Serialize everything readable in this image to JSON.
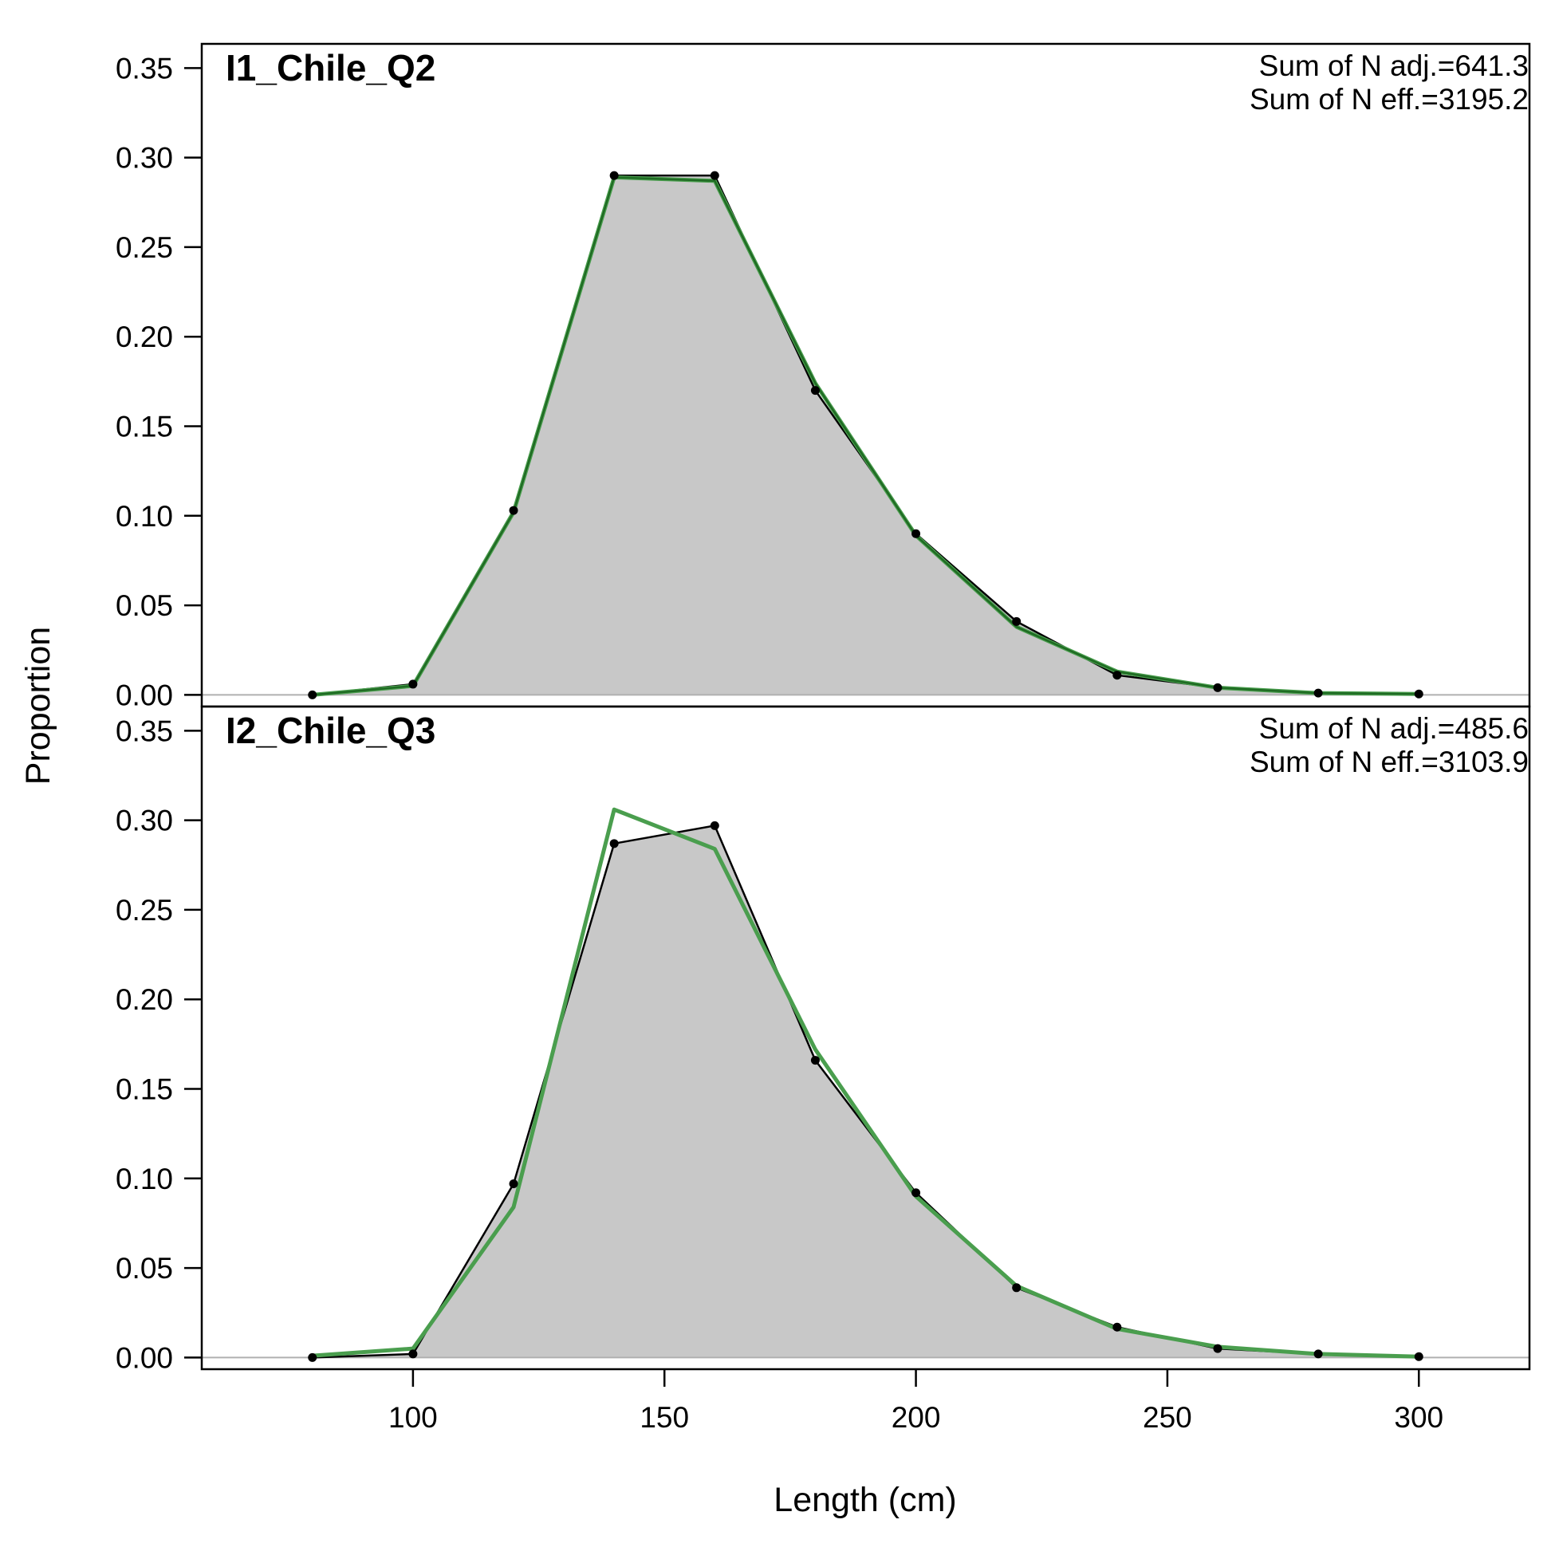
{
  "chart_data": {
    "type": "area",
    "xlabel": "Length (cm)",
    "ylabel": "Proportion",
    "xlim": [
      58,
      322
    ],
    "ylim": [
      -0.0065,
      0.3635
    ],
    "xticks": [
      100,
      150,
      200,
      250,
      300
    ],
    "yticks": [
      0.0,
      0.05,
      0.1,
      0.15,
      0.2,
      0.25,
      0.3,
      0.35
    ],
    "ytick_labels": [
      "0.00",
      "0.05",
      "0.10",
      "0.15",
      "0.20",
      "0.25",
      "0.30",
      "0.35"
    ],
    "colors": {
      "observed_fill": "#c8c8c8",
      "observed_line": "#000000",
      "expected_line": "#4a9e4e",
      "expected_line_dark": "#1f6b23",
      "zero_line": "#b0b0b0"
    },
    "x": [
      80,
      100,
      120,
      140,
      160,
      180,
      200,
      220,
      240,
      260,
      280,
      300
    ],
    "panels": [
      {
        "title": "I1_Chile_Q2",
        "annotations": [
          "Sum of N adj.=641.3",
          "Sum of N eff.=3195.2"
        ],
        "series": [
          {
            "role": "observed",
            "values": [
              0.0,
              0.006,
              0.103,
              0.29,
              0.29,
              0.17,
              0.09,
              0.041,
              0.011,
              0.004,
              0.001,
              0.0005
            ]
          },
          {
            "role": "expected",
            "values": [
              0.0,
              0.005,
              0.102,
              0.289,
              0.287,
              0.174,
              0.089,
              0.038,
              0.013,
              0.004,
              0.001,
              0.0005
            ]
          }
        ]
      },
      {
        "title": "I2_Chile_Q3",
        "annotations": [
          "Sum of N adj.=485.6",
          "Sum of N eff.=3103.9"
        ],
        "series": [
          {
            "role": "observed",
            "values": [
              0.0,
              0.002,
              0.097,
              0.287,
              0.297,
              0.166,
              0.092,
              0.039,
              0.017,
              0.005,
              0.002,
              0.0005
            ]
          },
          {
            "role": "expected",
            "values": [
              0.001,
              0.005,
              0.084,
              0.306,
              0.284,
              0.172,
              0.09,
              0.04,
              0.016,
              0.006,
              0.002,
              0.0005
            ]
          }
        ]
      }
    ]
  }
}
